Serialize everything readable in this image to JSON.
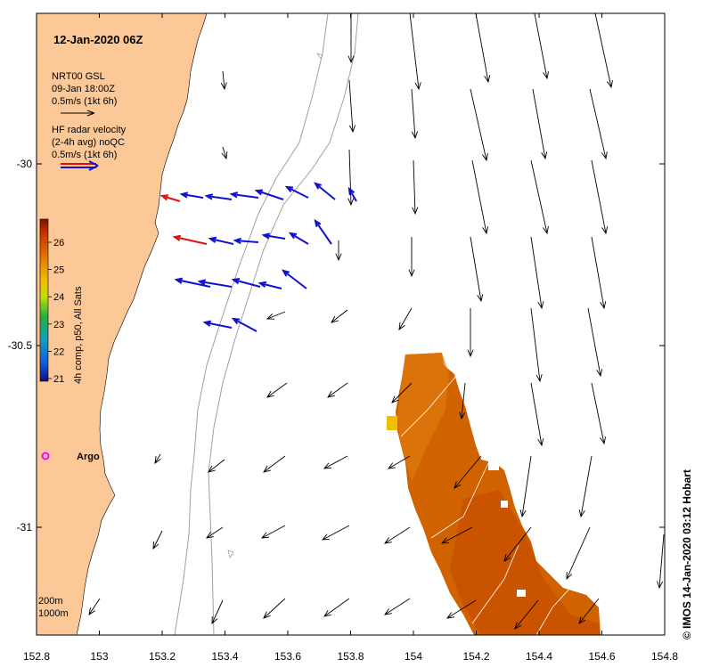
{
  "title": "12-Jan-2020 06Z",
  "legend": {
    "model_name": "NRT00 GSL",
    "model_time": "09-Jan 18:00Z",
    "model_scale": "0.5m/s (1kt 6h)",
    "radar_line1": "HF radar velocity",
    "radar_line2": "(2-4h avg) noQC",
    "radar_scale": "0.5m/s (1kt 6h)"
  },
  "colorbar": {
    "label": "4h comp, p50, All Sats",
    "ticks": [
      "26",
      "25",
      "24",
      "23",
      "22",
      "21"
    ]
  },
  "argo_label": "Argo",
  "isobaths": [
    "200m",
    "1000m"
  ],
  "credit": "© IMOS 14-Jan-2020 03:12 Hobart",
  "axes": {
    "x_ticks": [
      "152.8",
      "153",
      "153.2",
      "153.4",
      "153.6",
      "153.8",
      "154",
      "154.2",
      "154.4",
      "154.6",
      "154.8"
    ],
    "y_ticks": [
      "-30",
      "-30.5",
      "-31"
    ]
  },
  "colors": {
    "land": "#fcc898",
    "radar_arrow": "#1010d0",
    "radar_red": "#e01010",
    "sst_warm": "#d05a00",
    "argo": "#ff00ff",
    "isobath": "#a0a0a0"
  }
}
